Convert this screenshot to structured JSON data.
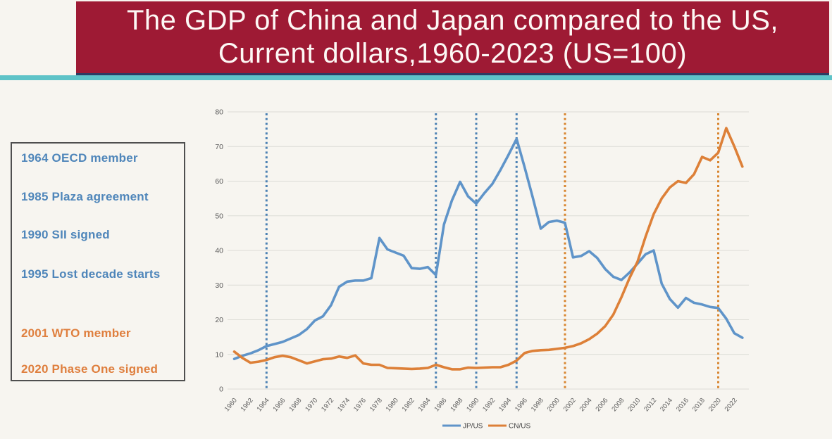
{
  "header": {
    "title_line1": "The GDP of China and Japan compared to the US,",
    "title_line2": "Current dollars,1960-2023 (US=100)",
    "banner_color": "#9e1a34",
    "banner_edge_color": "#2c3c63",
    "underline_color": "#5fc3c8",
    "title_text_color": "#fdf8f5"
  },
  "annotations": {
    "box_items": [
      {
        "text": "1964 OECD member",
        "color": "#4f86ba"
      },
      {
        "text": "1985 Plaza agreement",
        "color": "#4f86ba"
      },
      {
        "text": "1990 SII signed",
        "color": "#4f86ba"
      },
      {
        "text": "1995 Lost decade starts",
        "color": "#4f86ba"
      },
      {
        "text": "2001 WTO member",
        "color": "#df7f3e"
      },
      {
        "text": "2020 Phase One signed",
        "color": "#df7f3e"
      }
    ]
  },
  "chart_data": {
    "type": "line",
    "x_start": 1960,
    "x_end": 2023,
    "x_tick_step": 2,
    "ylim": [
      0,
      80
    ],
    "y_tick_step": 10,
    "grid": true,
    "legend_position": "bottom",
    "axis_text_color": "#595959",
    "grid_color": "#dcdcd6",
    "series": [
      {
        "name": "JP/US",
        "color": "#5f94c9",
        "values": [
          8.7,
          9.6,
          10.3,
          11.2,
          12.4,
          13.0,
          13.6,
          14.6,
          15.6,
          17.3,
          19.8,
          21.0,
          24.2,
          29.5,
          31.0,
          31.3,
          31.3,
          32.0,
          43.6,
          40.3,
          39.4,
          38.5,
          34.9,
          34.7,
          35.2,
          32.9,
          47.5,
          54.5,
          59.8,
          55.6,
          53.5,
          56.5,
          59.2,
          63.2,
          67.6,
          72.2,
          64.0,
          55.4,
          46.3,
          48.2,
          48.6,
          48.0,
          38.0,
          38.4,
          39.8,
          37.8,
          34.6,
          32.4,
          31.5,
          33.6,
          36.2,
          38.9,
          40.0,
          30.4,
          26.0,
          23.5,
          26.3,
          24.9,
          24.4,
          23.7,
          23.4,
          20.3,
          16.1,
          14.8
        ]
      },
      {
        "name": "CN/US",
        "color": "#dd8038",
        "values": [
          10.8,
          9.0,
          7.6,
          7.9,
          8.4,
          9.2,
          9.6,
          9.2,
          8.3,
          7.4,
          8.0,
          8.6,
          8.8,
          9.4,
          9.0,
          9.7,
          7.4,
          7.0,
          7.0,
          6.1,
          6.0,
          5.9,
          5.8,
          5.9,
          6.1,
          7.0,
          6.3,
          5.7,
          5.7,
          6.2,
          6.1,
          6.2,
          6.3,
          6.3,
          7.0,
          8.2,
          10.4,
          11.0,
          11.2,
          11.3,
          11.6,
          11.9,
          12.4,
          13.2,
          14.4,
          16.0,
          18.2,
          21.5,
          26.5,
          32.0,
          36.8,
          44.0,
          50.5,
          55.0,
          58.2,
          60.0,
          59.5,
          62.0,
          67.0,
          66.0,
          68.2,
          75.3,
          70.0,
          64.2
        ]
      }
    ],
    "event_lines": [
      {
        "year": 1964,
        "color": "#4d82b4"
      },
      {
        "year": 1985,
        "color": "#4d82b4"
      },
      {
        "year": 1990,
        "color": "#4d82b4"
      },
      {
        "year": 1995,
        "color": "#4d82b4"
      },
      {
        "year": 2001,
        "color": "#d8852f"
      },
      {
        "year": 2020,
        "color": "#d8852f"
      }
    ],
    "legend": [
      "JP/US",
      "CN/US"
    ]
  }
}
